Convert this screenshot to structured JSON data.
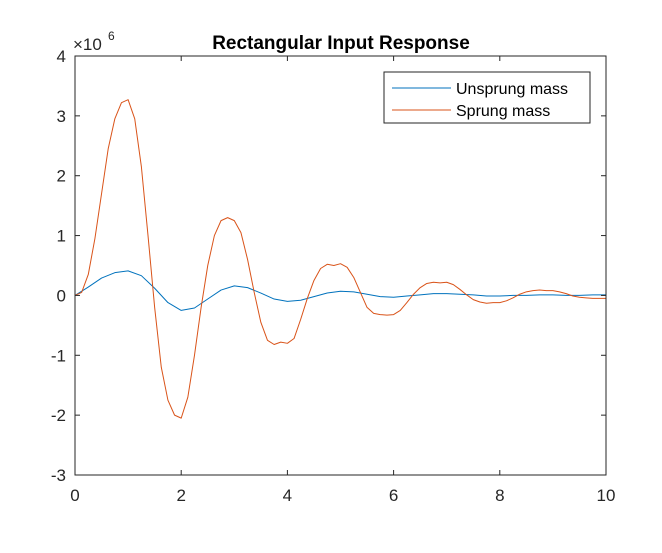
{
  "chart_data": {
    "type": "line",
    "title": "Rectangular Input Response",
    "xlabel": "",
    "ylabel": "",
    "xlim": [
      0,
      10
    ],
    "ylim": [
      -3,
      4
    ],
    "y_exponent_label": "×10",
    "y_exponent_power": "6",
    "y_multiplier": 1000000,
    "grid": false,
    "legend_position": "top-right",
    "x_ticks": [
      0,
      2,
      4,
      6,
      8,
      10
    ],
    "x_tick_labels": [
      "0",
      "2",
      "4",
      "6",
      "8",
      "10"
    ],
    "y_ticks": [
      4,
      3,
      2,
      1,
      0,
      -1,
      -2,
      -3
    ],
    "y_tick_labels": [
      "4",
      "3",
      "2",
      "1",
      "0",
      "-1",
      "-2",
      "-3"
    ],
    "series": [
      {
        "name": "Unsprung mass",
        "color": "#0072BD",
        "x": [
          0,
          0.25,
          0.5,
          0.75,
          1.0,
          1.25,
          1.5,
          1.75,
          2.0,
          2.25,
          2.5,
          2.75,
          3.0,
          3.25,
          3.5,
          3.75,
          4.0,
          4.25,
          4.5,
          4.75,
          5.0,
          5.25,
          5.5,
          5.75,
          6.0,
          6.25,
          6.5,
          6.75,
          7.0,
          7.25,
          7.5,
          7.75,
          8.0,
          8.25,
          8.5,
          8.75,
          9.0,
          9.25,
          9.5,
          9.75,
          10.0
        ],
        "y": [
          0,
          0.14,
          0.29,
          0.38,
          0.41,
          0.33,
          0.12,
          -0.12,
          -0.25,
          -0.21,
          -0.06,
          0.09,
          0.16,
          0.13,
          0.04,
          -0.06,
          -0.1,
          -0.08,
          -0.02,
          0.04,
          0.07,
          0.06,
          0.02,
          -0.02,
          -0.03,
          -0.01,
          0.01,
          0.03,
          0.03,
          0.02,
          0.01,
          -0.01,
          -0.01,
          0.0,
          0.0,
          0.01,
          0.01,
          0.0,
          0.0,
          0.01,
          0.01
        ]
      },
      {
        "name": "Sprung mass",
        "color": "#D95319",
        "x": [
          0,
          0.125,
          0.25,
          0.375,
          0.5,
          0.625,
          0.75,
          0.875,
          1.0,
          1.125,
          1.25,
          1.375,
          1.5,
          1.625,
          1.75,
          1.875,
          2.0,
          2.125,
          2.25,
          2.375,
          2.5,
          2.625,
          2.75,
          2.875,
          3.0,
          3.125,
          3.25,
          3.375,
          3.5,
          3.625,
          3.75,
          3.875,
          4.0,
          4.125,
          4.25,
          4.375,
          4.5,
          4.625,
          4.75,
          4.875,
          5.0,
          5.125,
          5.25,
          5.375,
          5.5,
          5.625,
          5.75,
          5.875,
          6.0,
          6.125,
          6.25,
          6.375,
          6.5,
          6.625,
          6.75,
          6.875,
          7.0,
          7.125,
          7.25,
          7.375,
          7.5,
          7.625,
          7.75,
          7.875,
          8.0,
          8.125,
          8.25,
          8.375,
          8.5,
          8.625,
          8.75,
          8.875,
          9.0,
          9.125,
          9.25,
          9.375,
          9.5,
          9.625,
          9.75,
          9.875,
          10.0
        ],
        "y": [
          0,
          0.05,
          0.35,
          0.95,
          1.7,
          2.45,
          2.95,
          3.22,
          3.27,
          2.95,
          2.15,
          1.0,
          -0.2,
          -1.2,
          -1.75,
          -2.0,
          -2.05,
          -1.7,
          -1.0,
          -0.2,
          0.5,
          1.0,
          1.25,
          1.3,
          1.25,
          1.05,
          0.6,
          0.05,
          -0.45,
          -0.75,
          -0.82,
          -0.78,
          -0.8,
          -0.72,
          -0.4,
          -0.05,
          0.25,
          0.45,
          0.52,
          0.5,
          0.53,
          0.47,
          0.3,
          0.05,
          -0.2,
          -0.3,
          -0.32,
          -0.33,
          -0.32,
          -0.25,
          -0.12,
          0.02,
          0.13,
          0.2,
          0.22,
          0.21,
          0.22,
          0.18,
          0.1,
          0.01,
          -0.07,
          -0.11,
          -0.13,
          -0.12,
          -0.12,
          -0.09,
          -0.04,
          0.02,
          0.06,
          0.08,
          0.09,
          0.08,
          0.08,
          0.06,
          0.03,
          -0.01,
          -0.03,
          -0.04,
          -0.05,
          -0.05,
          -0.05
        ]
      }
    ]
  }
}
